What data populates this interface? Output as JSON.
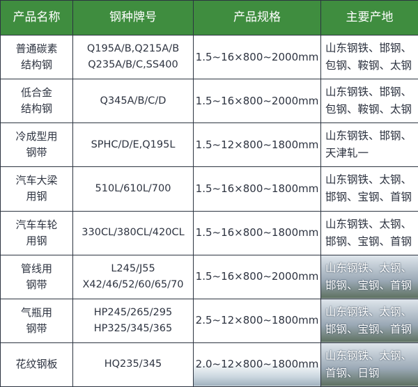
{
  "headers": [
    "产品名称",
    "钢种牌号",
    "产品规格",
    "主要产地"
  ],
  "colors": {
    "header_bg": "#3f8d3f",
    "header_text": "#ffffff",
    "border": "#2c3440"
  },
  "rows": [
    {
      "name": [
        "普通碳素",
        "结构钢"
      ],
      "grade": [
        "Q195A/B,Q215A/B",
        "Q235A/B/C,SS400"
      ],
      "spec": "1.5~16×800~2000mm",
      "origin": [
        "山东钢铁、邯钢、",
        "包钢、鞍钢、太钢"
      ]
    },
    {
      "name": [
        "低合金",
        "结构钢"
      ],
      "grade": [
        "Q345A/B/C/D"
      ],
      "spec": "1.5~16×800~2000mm",
      "origin": [
        "山东钢铁、邯钢、",
        "包钢、鞍钢、太钢"
      ]
    },
    {
      "name": [
        "冷成型用",
        "钢带"
      ],
      "grade": [
        "SPHC/D/E,Q195L"
      ],
      "spec": "1.5~12×800~1800mm",
      "origin": [
        "山东钢铁、邯钢、",
        "天津轧一"
      ]
    },
    {
      "name": [
        "汽车大梁",
        "用钢"
      ],
      "grade": [
        "510L/610L/700"
      ],
      "spec": "1.5~16×800~1800mm",
      "origin": [
        "山东钢铁、太钢、",
        "邯钢、宝钢、首钢"
      ]
    },
    {
      "name": [
        "汽车车轮",
        "用钢"
      ],
      "grade": [
        "330CL/380CL/420CL"
      ],
      "spec": "1.5~16×800~1800mm",
      "origin": [
        "山东钢铁、太钢、",
        "邯钢、宝钢、首钢"
      ]
    },
    {
      "name": [
        "管线用",
        "钢带"
      ],
      "grade": [
        "L245/J55",
        "X42/46/52/60/65/70"
      ],
      "spec": "1.5~16×800~2000mm",
      "origin": [
        "山东钢铁、太钢、",
        "邯钢、宝钢、首钢"
      ]
    },
    {
      "name": [
        "气瓶用",
        "钢带"
      ],
      "grade": [
        "HP245/265/295",
        "HP325/345/365"
      ],
      "spec": "2.5~12×800~1800mm",
      "origin": [
        "山东钢铁、太钢、",
        "邯钢、宝钢、首钢"
      ]
    },
    {
      "name": [
        "花纹钢板"
      ],
      "grade": [
        "HQ235/345"
      ],
      "spec": "2.0~12×800~1800mm",
      "origin": [
        "山东钢铁、太钢、",
        "首钢、日钢"
      ]
    }
  ]
}
